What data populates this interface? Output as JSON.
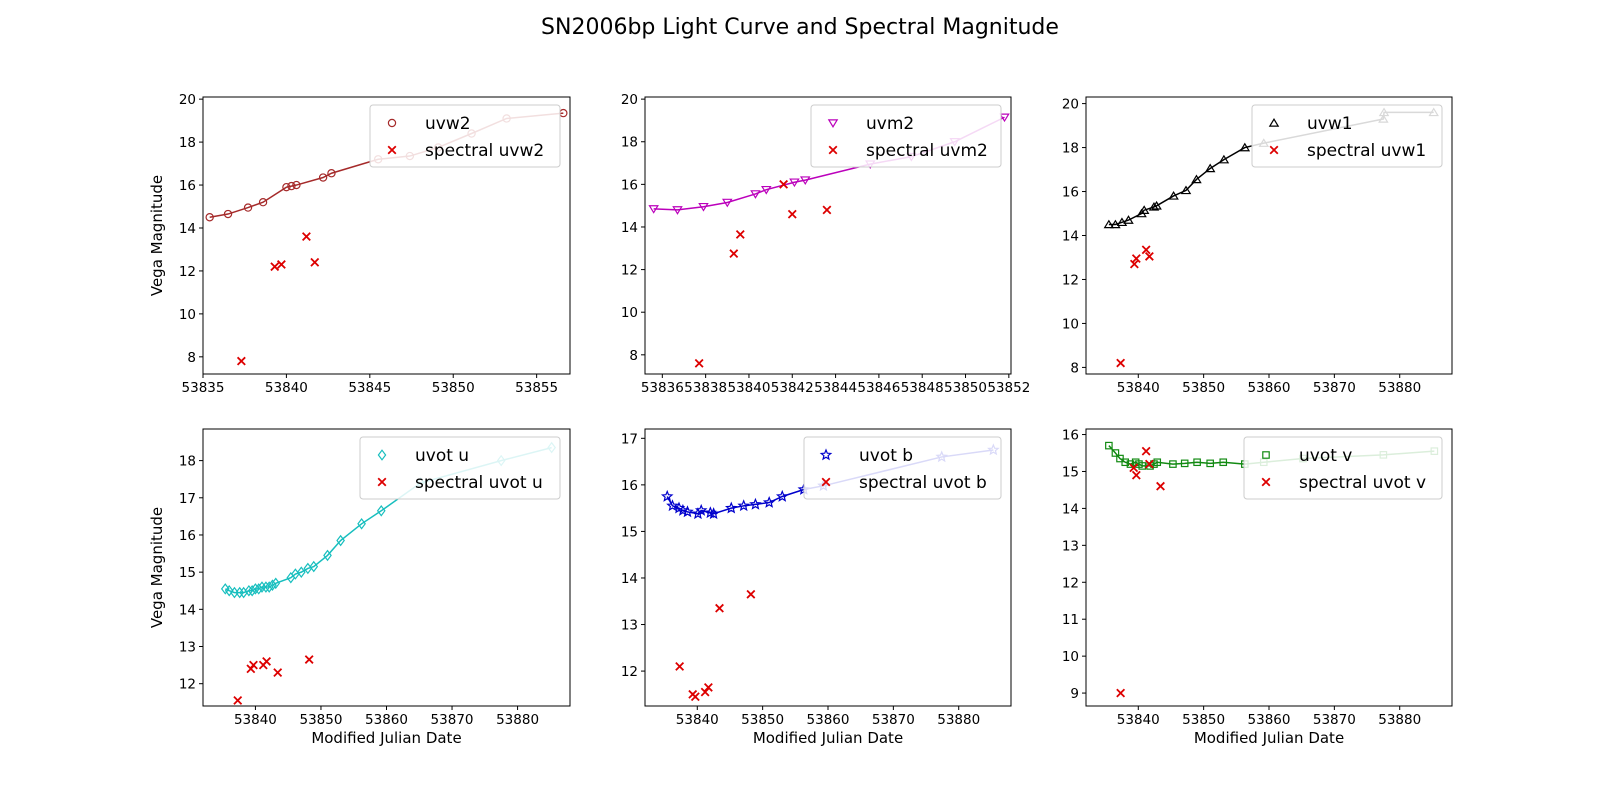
{
  "figure_title": "SN2006bp Light Curve and Spectral Magnitude",
  "chart_data": [
    {
      "type": "line",
      "filter": "uvw2",
      "color": "#a52a2a",
      "spectral_color": "#dd0000",
      "marker": "circle",
      "ylabel": "Vega Magnitude",
      "xlabel": "",
      "xlim": [
        53835,
        53857
      ],
      "ylim": [
        20.1,
        7.2
      ],
      "xticks": [
        53835,
        53840,
        53845,
        53850,
        53855
      ],
      "yticks": [
        8,
        10,
        12,
        14,
        16,
        18,
        20
      ],
      "series": [
        {
          "name": "uvw2",
          "kind": "photometry",
          "x": [
            53835.4,
            53836.5,
            53837.7,
            53838.6,
            53840.0,
            53840.3,
            53840.6,
            53842.2,
            53842.7,
            53845.5,
            53847.4,
            53849.1,
            53851.1,
            53853.2,
            53856.6
          ],
          "y": [
            14.5,
            14.65,
            14.95,
            15.2,
            15.9,
            15.95,
            16.0,
            16.35,
            16.55,
            17.2,
            17.35,
            17.75,
            18.4,
            19.1,
            19.35
          ]
        },
        {
          "name": "spectral uvw2",
          "kind": "spectral",
          "x": [
            53837.3,
            53839.3,
            53839.7,
            53841.2,
            53841.7
          ],
          "y": [
            7.8,
            12.2,
            12.3,
            13.6,
            12.4
          ]
        }
      ]
    },
    {
      "type": "line",
      "filter": "uvm2",
      "color": "#bb00bb",
      "spectral_color": "#dd0000",
      "marker": "triangle-down",
      "ylabel": "",
      "xlabel": "",
      "xlim": [
        53835.2,
        53852.1
      ],
      "ylim": [
        20.1,
        7.1
      ],
      "xticks": [
        53836,
        53838,
        53840,
        53842,
        53844,
        53846,
        53848,
        53850,
        53852
      ],
      "yticks": [
        8,
        10,
        12,
        14,
        16,
        18,
        20
      ],
      "series": [
        {
          "name": "uvm2",
          "kind": "photometry",
          "x": [
            53835.6,
            53836.7,
            53837.9,
            53839.0,
            53840.3,
            53840.8,
            53842.1,
            53842.6,
            53845.6,
            53847.5,
            53849.5,
            53851.8
          ],
          "y": [
            14.85,
            14.8,
            14.95,
            15.15,
            15.55,
            15.75,
            16.1,
            16.2,
            16.95,
            17.3,
            18.0,
            19.15
          ]
        },
        {
          "name": "spectral uvm2",
          "kind": "spectral",
          "x": [
            53837.7,
            53839.3,
            53839.6,
            53841.6,
            53842.0,
            53843.6
          ],
          "y": [
            7.6,
            12.75,
            13.65,
            16.0,
            14.6,
            14.8
          ]
        }
      ]
    },
    {
      "type": "line",
      "filter": "uvw1",
      "color": "#000000",
      "spectral_color": "#dd0000",
      "marker": "triangle-up",
      "ylabel": "",
      "xlabel": "",
      "xlim": [
        53832,
        53888
      ],
      "ylim": [
        20.3,
        7.7
      ],
      "xticks": [
        53840,
        53850,
        53860,
        53870,
        53880
      ],
      "yticks": [
        8,
        10,
        12,
        14,
        16,
        18,
        20
      ],
      "series": [
        {
          "name": "uvw1",
          "kind": "photometry",
          "x": [
            53835.5,
            53836.5,
            53837.5,
            53838.5,
            53840.5,
            53840.9,
            53842.4,
            53842.8,
            53845.4,
            53847.3,
            53848.9,
            53851.0,
            53853.1,
            53856.3,
            53859.2,
            53877.5,
            53877.6,
            53885.2
          ],
          "y": [
            14.5,
            14.5,
            14.6,
            14.7,
            15.0,
            15.15,
            15.3,
            15.35,
            15.8,
            16.05,
            16.55,
            17.05,
            17.45,
            18.0,
            18.2,
            19.3,
            19.6,
            19.6
          ]
        },
        {
          "name": "spectral uvw1",
          "kind": "spectral",
          "x": [
            53837.3,
            53839.4,
            53839.7,
            53841.2,
            53841.7
          ],
          "y": [
            8.2,
            12.7,
            12.95,
            13.35,
            13.05
          ]
        }
      ]
    },
    {
      "type": "line",
      "filter": "uvot u",
      "color": "#17bebe",
      "spectral_color": "#dd0000",
      "marker": "diamond",
      "ylabel": "Vega Magnitude",
      "xlabel": "Modified Julian Date",
      "xlim": [
        53832,
        53888
      ],
      "ylim": [
        18.85,
        11.4
      ],
      "xticks": [
        53840,
        53850,
        53860,
        53870,
        53880
      ],
      "yticks": [
        12,
        13,
        14,
        15,
        16,
        17,
        18
      ],
      "series": [
        {
          "name": "uvot u",
          "kind": "photometry",
          "x": [
            53835.4,
            53836.0,
            53836.8,
            53837.6,
            53838.2,
            53839.0,
            53839.5,
            53840.0,
            53840.5,
            53841.0,
            53841.6,
            53842.1,
            53842.6,
            53843.1,
            53845.4,
            53846.1,
            53847.0,
            53848.0,
            53848.9,
            53851.0,
            53853.0,
            53856.2,
            53859.2,
            53865.2,
            53877.5,
            53885.2
          ],
          "y": [
            14.55,
            14.5,
            14.45,
            14.45,
            14.45,
            14.5,
            14.5,
            14.55,
            14.55,
            14.6,
            14.6,
            14.6,
            14.65,
            14.7,
            14.85,
            14.95,
            15.0,
            15.1,
            15.15,
            15.45,
            15.85,
            16.3,
            16.65,
            17.4,
            18.0,
            18.35
          ]
        },
        {
          "name": "spectral uvot u",
          "kind": "spectral",
          "x": [
            53837.3,
            53839.3,
            53839.7,
            53841.2,
            53841.7,
            53843.4,
            53848.2
          ],
          "y": [
            11.55,
            12.4,
            12.5,
            12.5,
            12.6,
            12.3,
            12.65
          ]
        }
      ]
    },
    {
      "type": "line",
      "filter": "uvot b",
      "color": "#0000cc",
      "spectral_color": "#dd0000",
      "marker": "star",
      "ylabel": "",
      "xlabel": "Modified Julian Date",
      "xlim": [
        53832,
        53888
      ],
      "ylim": [
        17.2,
        11.25
      ],
      "xticks": [
        53840,
        53850,
        53860,
        53870,
        53880
      ],
      "yticks": [
        12,
        13,
        14,
        15,
        16,
        17
      ],
      "series": [
        {
          "name": "uvot b",
          "kind": "photometry",
          "x": [
            53835.4,
            53836.2,
            53837.2,
            53837.8,
            53838.5,
            53840.1,
            53840.6,
            53842.0,
            53842.5,
            53845.2,
            53847.1,
            53848.9,
            53851.0,
            53853.0,
            53856.3,
            53859.3,
            53877.4,
            53885.3
          ],
          "y": [
            15.75,
            15.55,
            15.5,
            15.45,
            15.42,
            15.38,
            15.45,
            15.4,
            15.38,
            15.5,
            15.55,
            15.58,
            15.62,
            15.75,
            15.9,
            15.98,
            16.6,
            16.75
          ]
        },
        {
          "name": "spectral uvot b",
          "kind": "spectral",
          "x": [
            53837.3,
            53839.3,
            53839.7,
            53841.2,
            53841.7,
            53843.4,
            53848.2
          ],
          "y": [
            12.1,
            11.5,
            11.45,
            11.55,
            11.65,
            13.35,
            13.65
          ]
        }
      ]
    },
    {
      "type": "line",
      "filter": "uvot v",
      "color": "#128a12",
      "spectral_color": "#dd0000",
      "marker": "square",
      "ylabel": "",
      "xlabel": "Modified Julian Date",
      "xlim": [
        53832,
        53888
      ],
      "ylim": [
        16.15,
        8.65
      ],
      "xticks": [
        53840,
        53850,
        53860,
        53870,
        53880
      ],
      "yticks": [
        9,
        10,
        11,
        12,
        13,
        14,
        15,
        16
      ],
      "series": [
        {
          "name": "uvot v",
          "kind": "photometry",
          "x": [
            53835.5,
            53836.5,
            53837.2,
            53838.0,
            53838.8,
            53839.6,
            53840.1,
            53840.6,
            53841.8,
            53842.4,
            53842.9,
            53845.3,
            53847.1,
            53849.0,
            53851.0,
            53853.0,
            53856.3,
            53859.2,
            53865.2,
            53877.5,
            53885.3
          ],
          "y": [
            15.7,
            15.5,
            15.35,
            15.25,
            15.2,
            15.25,
            15.2,
            15.15,
            15.15,
            15.2,
            15.25,
            15.2,
            15.22,
            15.25,
            15.22,
            15.25,
            15.2,
            15.25,
            15.35,
            15.45,
            15.55
          ]
        },
        {
          "name": "spectral uvot v",
          "kind": "spectral",
          "x": [
            53837.3,
            53839.3,
            53839.7,
            53841.2,
            53841.7,
            53843.4
          ],
          "y": [
            9.0,
            15.1,
            14.9,
            15.55,
            15.2,
            14.6
          ]
        }
      ]
    }
  ]
}
